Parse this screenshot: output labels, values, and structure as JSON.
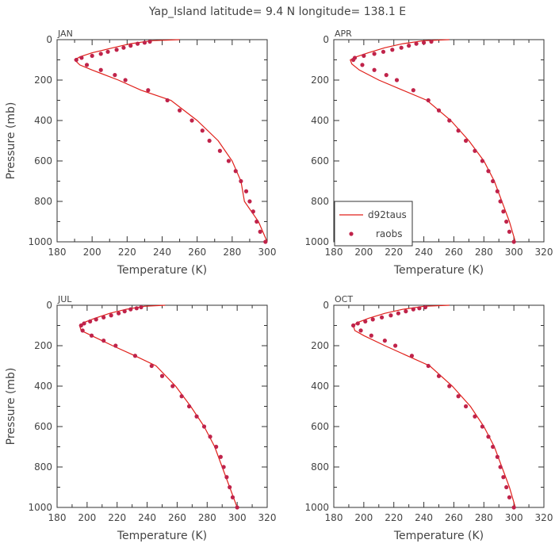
{
  "title": "Yap_Island   latitude= 9.4 N longitude= 138.1 E",
  "colors": {
    "model_line": "#e0201a",
    "obs_marker": "#c0234a",
    "axis": "#333333"
  },
  "legend": {
    "line_label": "d92taus",
    "marker_label": "raobs",
    "panel_index": 1
  },
  "chart_data": [
    {
      "type": "line",
      "label": "JAN",
      "xlabel": "Temperature (K)",
      "ylabel": "Pressure (mb)",
      "xlim": [
        180,
        300
      ],
      "xticks": [
        180,
        200,
        220,
        240,
        260,
        280,
        300
      ],
      "ylim": [
        1000,
        0
      ],
      "yticks": [
        0,
        200,
        400,
        600,
        800,
        1000
      ],
      "series": [
        {
          "name": "d92taus",
          "kind": "line",
          "x": [
            250,
            234,
            222,
            212,
            200,
            193,
            190,
            193,
            200,
            215,
            228,
            245,
            260,
            272,
            280,
            285,
            287,
            295,
            300
          ],
          "y": [
            0,
            5,
            20,
            40,
            65,
            85,
            100,
            125,
            150,
            200,
            250,
            300,
            400,
            500,
            600,
            700,
            800,
            900,
            1000
          ]
        },
        {
          "name": "raobs",
          "kind": "markers",
          "x": [
            233,
            230,
            226,
            222,
            218,
            214,
            209,
            205,
            200,
            194,
            191,
            197,
            205,
            213,
            219,
            232,
            243,
            250,
            257,
            263,
            267,
            273,
            278,
            282,
            285,
            288,
            290,
            292,
            294,
            296,
            299
          ],
          "y": [
            10,
            15,
            20,
            30,
            40,
            50,
            60,
            70,
            80,
            90,
            100,
            125,
            150,
            175,
            200,
            250,
            300,
            350,
            400,
            450,
            500,
            550,
            600,
            650,
            700,
            750,
            800,
            850,
            900,
            950,
            1000
          ]
        }
      ]
    },
    {
      "type": "line",
      "label": "APR",
      "xlabel": "Temperature (K)",
      "ylabel": "",
      "xlim": [
        180,
        320
      ],
      "xticks": [
        180,
        200,
        220,
        240,
        260,
        280,
        300,
        320
      ],
      "ylim": [
        1000,
        0
      ],
      "yticks": [
        0,
        200,
        400,
        600,
        800,
        1000
      ],
      "series": [
        {
          "name": "d92taus",
          "kind": "line",
          "x": [
            257,
            240,
            226,
            214,
            203,
            195,
            191,
            192,
            197,
            210,
            226,
            242,
            258,
            270,
            280,
            287,
            292,
            297,
            301
          ],
          "y": [
            0,
            5,
            20,
            40,
            65,
            85,
            100,
            120,
            150,
            200,
            250,
            300,
            400,
            500,
            600,
            700,
            800,
            900,
            1000
          ]
        },
        {
          "name": "raobs",
          "kind": "markers",
          "x": [
            245,
            240,
            235,
            230,
            225,
            219,
            213,
            207,
            200,
            194,
            193,
            199,
            207,
            215,
            222,
            233,
            243,
            250,
            257,
            263,
            268,
            274,
            279,
            283,
            286,
            289,
            291,
            293,
            295,
            297,
            300
          ],
          "y": [
            10,
            15,
            20,
            30,
            40,
            50,
            60,
            70,
            80,
            90,
            100,
            125,
            150,
            175,
            200,
            250,
            300,
            350,
            400,
            450,
            500,
            550,
            600,
            650,
            700,
            750,
            800,
            850,
            900,
            950,
            1000
          ]
        }
      ]
    },
    {
      "type": "line",
      "label": "JUL",
      "xlabel": "Temperature (K)",
      "ylabel": "Pressure (mb)",
      "xlim": [
        180,
        320
      ],
      "xticks": [
        180,
        200,
        220,
        240,
        260,
        280,
        300,
        320
      ],
      "ylim": [
        1000,
        0
      ],
      "yticks": [
        0,
        200,
        400,
        600,
        800,
        1000
      ],
      "series": [
        {
          "name": "d92taus",
          "kind": "line",
          "x": [
            252,
            238,
            226,
            215,
            205,
            198,
            195,
            196,
            203,
            217,
            232,
            246,
            259,
            269,
            278,
            285,
            290,
            295,
            300
          ],
          "y": [
            0,
            5,
            20,
            40,
            65,
            85,
            100,
            125,
            150,
            200,
            250,
            300,
            400,
            500,
            600,
            700,
            800,
            900,
            1000
          ]
        },
        {
          "name": "raobs",
          "kind": "markers",
          "x": [
            236,
            233,
            229,
            225,
            221,
            216,
            211,
            206,
            202,
            198,
            196,
            197,
            203,
            211,
            219,
            232,
            243,
            250,
            257,
            263,
            268,
            273,
            278,
            282,
            286,
            289,
            291,
            293,
            295,
            297,
            300
          ],
          "y": [
            10,
            15,
            20,
            30,
            40,
            50,
            60,
            70,
            80,
            90,
            100,
            125,
            150,
            175,
            200,
            250,
            300,
            350,
            400,
            450,
            500,
            550,
            600,
            650,
            700,
            750,
            800,
            850,
            900,
            950,
            1000
          ]
        }
      ]
    },
    {
      "type": "line",
      "label": "OCT",
      "xlabel": "Temperature (K)",
      "ylabel": "",
      "xlim": [
        180,
        320
      ],
      "xticks": [
        180,
        200,
        220,
        240,
        260,
        280,
        300,
        320
      ],
      "ylim": [
        1000,
        0
      ],
      "yticks": [
        0,
        200,
        400,
        600,
        800,
        1000
      ],
      "series": [
        {
          "name": "d92taus",
          "kind": "line",
          "x": [
            257,
            240,
            226,
            214,
            203,
            196,
            193,
            194,
            200,
            214,
            229,
            244,
            259,
            271,
            280,
            287,
            292,
            297,
            301
          ],
          "y": [
            0,
            5,
            20,
            40,
            65,
            85,
            100,
            125,
            150,
            200,
            250,
            300,
            400,
            500,
            600,
            700,
            800,
            900,
            1000
          ]
        },
        {
          "name": "raobs",
          "kind": "markers",
          "x": [
            241,
            237,
            233,
            228,
            223,
            218,
            212,
            206,
            201,
            196,
            193,
            198,
            205,
            214,
            221,
            232,
            243,
            250,
            257,
            263,
            268,
            274,
            279,
            283,
            286,
            289,
            291,
            293,
            295,
            297,
            300
          ],
          "y": [
            10,
            15,
            20,
            30,
            40,
            50,
            60,
            70,
            80,
            90,
            100,
            125,
            150,
            175,
            200,
            250,
            300,
            350,
            400,
            450,
            500,
            550,
            600,
            650,
            700,
            750,
            800,
            850,
            900,
            950,
            1000
          ]
        }
      ]
    }
  ]
}
